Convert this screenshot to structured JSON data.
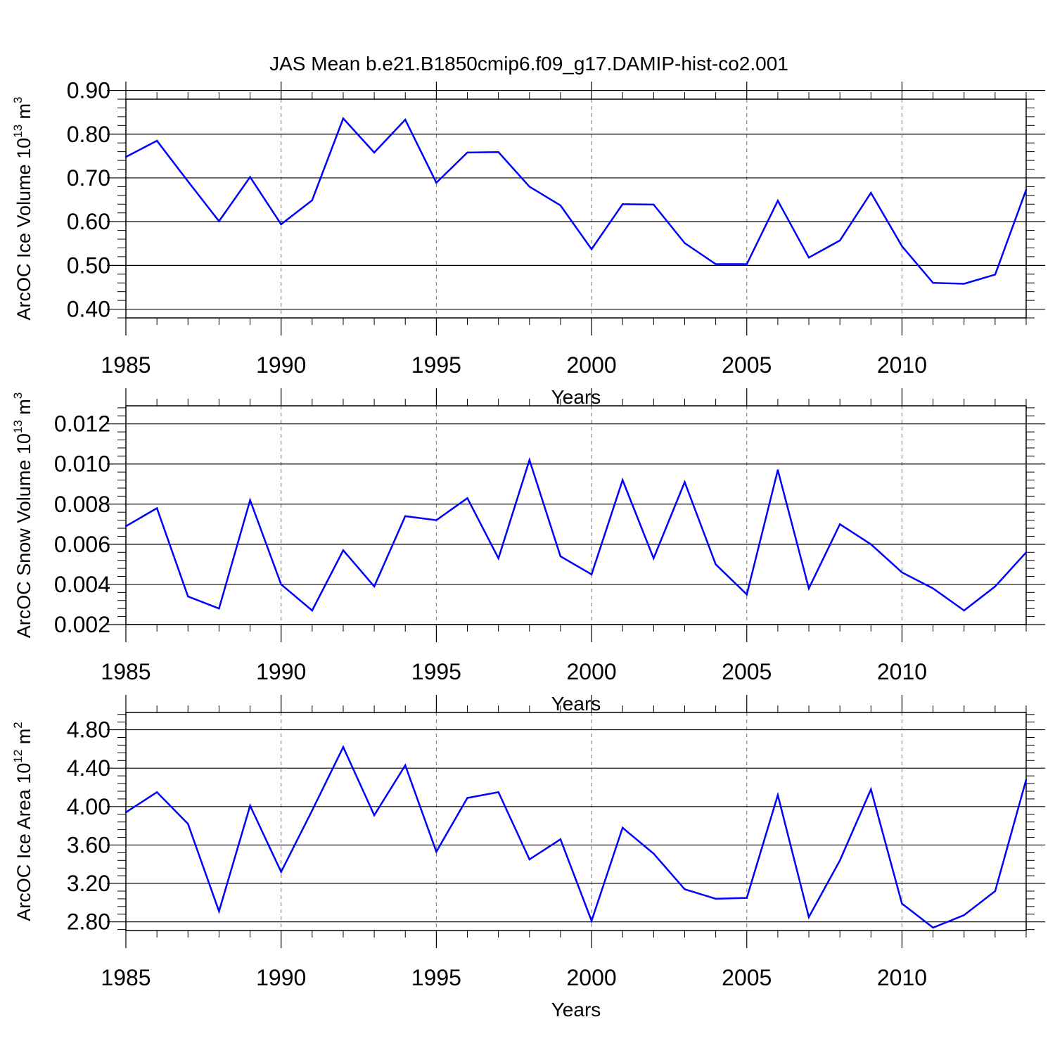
{
  "title": "JAS Mean b.e21.B1850cmip6.f09_g17.DAMIP-hist-co2.001",
  "colors": {
    "line": "#0000ff",
    "axis": "#000000",
    "grid": "#888888"
  },
  "chart_data": [
    {
      "type": "line",
      "ylabel": {
        "main": "ArcOC Ice Volume 10",
        "exp": "13",
        "unit": " m",
        "unit_exp": "3"
      },
      "xlabel": "Years",
      "xlim": [
        1985,
        2014
      ],
      "ylim": [
        0.38,
        0.88
      ],
      "yticks": [
        0.4,
        0.5,
        0.6,
        0.7,
        0.8,
        0.9
      ],
      "ytick_labels": [
        "0.40",
        "0.50",
        "0.60",
        "0.70",
        "0.80",
        "0.90"
      ],
      "xticks": [
        1985,
        1990,
        1995,
        2000,
        2005,
        2010
      ],
      "xtick_labels": [
        "1985",
        "1990",
        "1995",
        "2000",
        "2005",
        "2010"
      ],
      "x": [
        1985,
        1986,
        1987,
        1988,
        1989,
        1990,
        1991,
        1992,
        1993,
        1994,
        1995,
        1996,
        1997,
        1998,
        1999,
        2000,
        2001,
        2002,
        2003,
        2004,
        2005,
        2006,
        2007,
        2008,
        2009,
        2010,
        2011,
        2012,
        2013,
        2014
      ],
      "values": [
        0.748,
        0.785,
        0.692,
        0.601,
        0.702,
        0.594,
        0.649,
        0.836,
        0.758,
        0.833,
        0.689,
        0.758,
        0.759,
        0.68,
        0.637,
        0.537,
        0.64,
        0.639,
        0.551,
        0.503,
        0.503,
        0.648,
        0.518,
        0.557,
        0.666,
        0.544,
        0.46,
        0.458,
        0.479,
        0.673
      ]
    },
    {
      "type": "line",
      "ylabel": {
        "main": "ArcOC Snow Volume 10",
        "exp": "13",
        "unit": " m",
        "unit_exp": "3"
      },
      "xlabel": "Years",
      "xlim": [
        1985,
        2014
      ],
      "ylim": [
        0.002,
        0.0129
      ],
      "yticks": [
        0.002,
        0.004,
        0.006,
        0.008,
        0.01,
        0.012
      ],
      "ytick_labels": [
        "0.002",
        "0.004",
        "0.006",
        "0.008",
        "0.010",
        "0.012"
      ],
      "xticks": [
        1985,
        1990,
        1995,
        2000,
        2005,
        2010
      ],
      "xtick_labels": [
        "1985",
        "1990",
        "1995",
        "2000",
        "2005",
        "2010"
      ],
      "x": [
        1985,
        1986,
        1987,
        1988,
        1989,
        1990,
        1991,
        1992,
        1993,
        1994,
        1995,
        1996,
        1997,
        1998,
        1999,
        2000,
        2001,
        2002,
        2003,
        2004,
        2005,
        2006,
        2007,
        2008,
        2009,
        2010,
        2011,
        2012,
        2013,
        2014
      ],
      "values": [
        0.0069,
        0.0078,
        0.0034,
        0.0028,
        0.0082,
        0.004,
        0.0027,
        0.0057,
        0.0039,
        0.0074,
        0.0072,
        0.0083,
        0.0053,
        0.0102,
        0.0054,
        0.0045,
        0.0092,
        0.0053,
        0.0091,
        0.005,
        0.0035,
        0.0097,
        0.0038,
        0.007,
        0.006,
        0.0046,
        0.0038,
        0.0027,
        0.0039,
        0.0056
      ]
    },
    {
      "type": "line",
      "ylabel": {
        "main": "ArcOC Ice Area 10",
        "exp": "12",
        "unit": " m",
        "unit_exp": "2"
      },
      "xlabel": "Years",
      "xlim": [
        1985,
        2014
      ],
      "ylim": [
        2.71,
        4.98
      ],
      "yticks": [
        2.8,
        3.2,
        3.6,
        4.0,
        4.4,
        4.8
      ],
      "ytick_labels": [
        "2.80",
        "3.20",
        "3.60",
        "4.00",
        "4.40",
        "4.80"
      ],
      "xticks": [
        1985,
        1990,
        1995,
        2000,
        2005,
        2010
      ],
      "xtick_labels": [
        "1985",
        "1990",
        "1995",
        "2000",
        "2005",
        "2010"
      ],
      "x": [
        1985,
        1986,
        1987,
        1988,
        1989,
        1990,
        1991,
        1992,
        1993,
        1994,
        1995,
        1996,
        1997,
        1998,
        1999,
        2000,
        2001,
        2002,
        2003,
        2004,
        2005,
        2006,
        2007,
        2008,
        2009,
        2010,
        2011,
        2012,
        2013,
        2014
      ],
      "values": [
        3.94,
        4.15,
        3.82,
        2.91,
        4.01,
        3.32,
        3.96,
        4.62,
        3.91,
        4.43,
        3.53,
        4.09,
        4.15,
        3.45,
        3.66,
        2.81,
        3.78,
        3.51,
        3.14,
        3.04,
        3.05,
        4.12,
        2.85,
        3.44,
        4.18,
        2.99,
        2.74,
        2.87,
        3.12,
        4.28
      ]
    }
  ]
}
